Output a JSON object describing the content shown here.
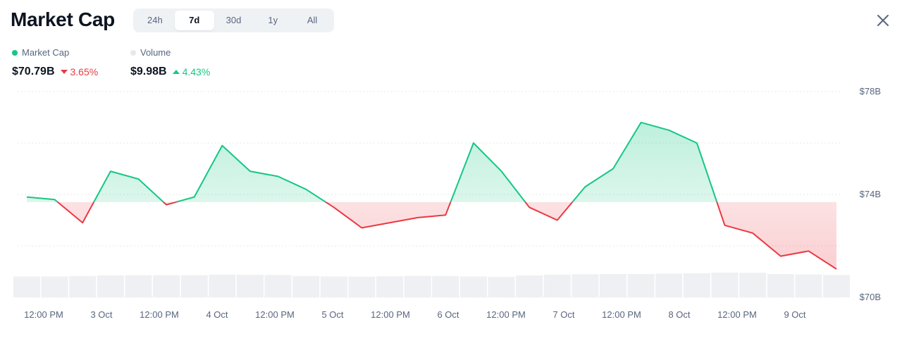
{
  "header": {
    "title": "Market Cap",
    "tabs": [
      {
        "label": "24h",
        "active": false
      },
      {
        "label": "7d",
        "active": true
      },
      {
        "label": "30d",
        "active": false
      },
      {
        "label": "1y",
        "active": false
      },
      {
        "label": "All",
        "active": false
      }
    ],
    "close_icon": "close-icon"
  },
  "legend": {
    "market_cap": {
      "label": "Market Cap",
      "color": "#16c784",
      "value": "$70.79B",
      "change": "3.65%",
      "direction": "down"
    },
    "volume": {
      "label": "Volume",
      "color": "#e6e8ea",
      "value": "$9.98B",
      "change": "4.43%",
      "direction": "up"
    }
  },
  "colors": {
    "up": "#16c784",
    "down": "#ea3943",
    "grid": "#e6e8ea"
  },
  "chart_data": {
    "type": "area",
    "title": "Market Cap",
    "series": [
      {
        "name": "Market Cap",
        "unit": "$B",
        "x": [
          "2 Oct 06:00",
          "2 Oct 12:00",
          "2 Oct 18:00",
          "3 Oct 00:00",
          "3 Oct 06:00",
          "3 Oct 12:00",
          "3 Oct 18:00",
          "4 Oct 00:00",
          "4 Oct 06:00",
          "4 Oct 12:00",
          "4 Oct 18:00",
          "5 Oct 00:00",
          "5 Oct 06:00",
          "5 Oct 12:00",
          "5 Oct 18:00",
          "6 Oct 00:00",
          "6 Oct 06:00",
          "6 Oct 12:00",
          "6 Oct 18:00",
          "7 Oct 00:00",
          "7 Oct 06:00",
          "7 Oct 12:00",
          "7 Oct 18:00",
          "8 Oct 00:00",
          "8 Oct 06:00",
          "8 Oct 12:00",
          "8 Oct 18:00",
          "9 Oct 00:00",
          "9 Oct 06:00",
          "9 Oct 12:00"
        ],
        "values": [
          73.9,
          73.8,
          72.9,
          74.9,
          74.6,
          73.6,
          73.9,
          75.9,
          74.9,
          74.7,
          74.2,
          73.5,
          72.7,
          72.9,
          73.1,
          73.2,
          76.0,
          74.9,
          73.5,
          73.0,
          74.3,
          75.0,
          76.8,
          76.5,
          76.0,
          72.8,
          72.5,
          71.6,
          71.8,
          71.1
        ]
      }
    ],
    "volume": [
      10.4,
      10.4,
      10.6,
      10.9,
      11.0,
      11.0,
      11.0,
      11.3,
      11.2,
      11.1,
      10.6,
      10.4,
      10.3,
      10.5,
      10.7,
      10.6,
      10.4,
      10.2,
      10.9,
      11.3,
      11.5,
      11.6,
      11.6,
      11.8,
      12.0,
      12.3,
      12.2,
      11.6,
      11.4,
      11.1
    ],
    "baseline": 73.7,
    "xticks": [
      "12:00 PM",
      "3 Oct",
      "12:00 PM",
      "4 Oct",
      "12:00 PM",
      "5 Oct",
      "12:00 PM",
      "6 Oct",
      "12:00 PM",
      "7 Oct",
      "12:00 PM",
      "8 Oct",
      "12:00 PM",
      "9 Oct"
    ],
    "yticks": [
      "$78B",
      "$74B",
      "$70B"
    ],
    "ylim": [
      70,
      78
    ],
    "grid": true,
    "xlabel": "",
    "ylabel": ""
  }
}
